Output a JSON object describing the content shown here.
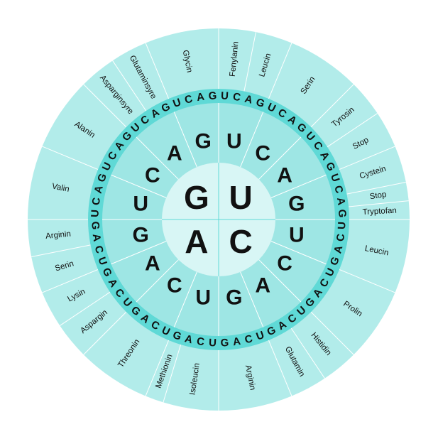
{
  "colors": {
    "outer": "#b2ecea",
    "third_ring": "#5fd9d6",
    "second_ring": "#9ee6e4",
    "center": "#d8f6f5",
    "divider": "#ffffff",
    "center_divider": "#5fd9d6"
  },
  "first_bases": [
    "U",
    "C",
    "A",
    "G"
  ],
  "second_bases": [
    [
      "U",
      "C",
      "A",
      "G"
    ],
    [
      "U",
      "C",
      "A",
      "G"
    ],
    [
      "U",
      "C",
      "A",
      "G"
    ],
    [
      "U",
      "C",
      "A",
      "G"
    ]
  ],
  "third_bases": [
    [
      "U",
      "C",
      "A",
      "G",
      "U",
      "C",
      "A",
      "G",
      "U",
      "C",
      "A",
      "G",
      "U",
      "C",
      "A",
      "G"
    ],
    [
      "U",
      "C",
      "A",
      "G",
      "U",
      "C",
      "A",
      "G",
      "U",
      "C",
      "A",
      "G",
      "U",
      "C",
      "A",
      "G"
    ],
    [
      "U",
      "C",
      "A",
      "G",
      "U",
      "C",
      "A",
      "G",
      "U",
      "C",
      "A",
      "G",
      "U",
      "C",
      "A",
      "G"
    ],
    [
      "U",
      "C",
      "A",
      "G",
      "U",
      "C",
      "A",
      "G",
      "U",
      "C",
      "A",
      "G",
      "U",
      "C",
      "A",
      "G"
    ]
  ],
  "amino_acids": {
    "U": [
      {
        "label": "Fenylanin",
        "span": [
          0,
          2
        ]
      },
      {
        "label": "Leucin",
        "span": [
          2,
          4
        ]
      },
      {
        "label": "Serin",
        "span": [
          4,
          8
        ]
      },
      {
        "label": "Tyrosin",
        "span": [
          8,
          10
        ]
      },
      {
        "label": "Stop",
        "span": [
          10,
          12
        ]
      },
      {
        "label": "Cystein",
        "span": [
          12,
          14
        ]
      },
      {
        "label": "Stop",
        "span": [
          14,
          15
        ]
      },
      {
        "label": "Tryptofan",
        "span": [
          15,
          16
        ]
      }
    ],
    "C": [
      {
        "label": "Leucin",
        "span": [
          0,
          4
        ]
      },
      {
        "label": "Prolin",
        "span": [
          4,
          8
        ]
      },
      {
        "label": "Histidin",
        "span": [
          8,
          10
        ]
      },
      {
        "label": "Glutamin",
        "span": [
          10,
          12
        ]
      },
      {
        "label": "Arginin",
        "span": [
          12,
          16
        ]
      }
    ],
    "A": [
      {
        "label": "Isoleucin",
        "span": [
          0,
          3
        ]
      },
      {
        "label": "Methionin",
        "span": [
          3,
          4
        ]
      },
      {
        "label": "Threonin",
        "span": [
          4,
          8
        ]
      },
      {
        "label": "Aspargin",
        "span": [
          8,
          10
        ]
      },
      {
        "label": "Lysin",
        "span": [
          10,
          12
        ]
      },
      {
        "label": "Serin",
        "span": [
          12,
          14
        ]
      },
      {
        "label": "Arginin",
        "span": [
          14,
          16
        ]
      }
    ],
    "G": [
      {
        "label": "Valin",
        "span": [
          0,
          4
        ]
      },
      {
        "label": "Alanin",
        "span": [
          4,
          8
        ]
      },
      {
        "label": "Asparginsyre",
        "span": [
          8,
          10
        ]
      },
      {
        "label": "Glutaminsyre",
        "span": [
          10,
          12
        ]
      },
      {
        "label": "Glycin",
        "span": [
          12,
          16
        ]
      }
    ]
  }
}
